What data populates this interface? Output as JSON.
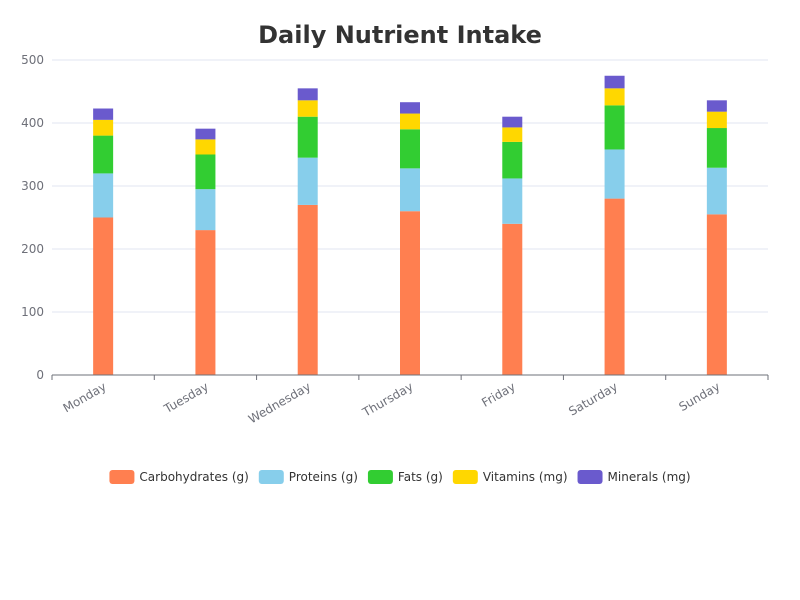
{
  "chart_data": {
    "type": "bar",
    "stacked": true,
    "title": "Daily Nutrient Intake",
    "xlabel": "",
    "ylabel": "",
    "categories": [
      "Monday",
      "Tuesday",
      "Wednesday",
      "Thursday",
      "Friday",
      "Saturday",
      "Sunday"
    ],
    "ylim": [
      0,
      500
    ],
    "yticks": [
      0,
      100,
      200,
      300,
      400,
      500
    ],
    "grid": true,
    "legend_position": "bottom",
    "series": [
      {
        "name": "Carbohydrates (g)",
        "color": "#ff7f50",
        "values": [
          250,
          230,
          270,
          260,
          240,
          280,
          255
        ]
      },
      {
        "name": "Proteins (g)",
        "color": "#87ceeb",
        "values": [
          70,
          65,
          75,
          68,
          72,
          78,
          74
        ]
      },
      {
        "name": "Fats (g)",
        "color": "#32cd32",
        "values": [
          60,
          55,
          65,
          62,
          58,
          70,
          63
        ]
      },
      {
        "name": "Vitamins (mg)",
        "color": "#ffd700",
        "values": [
          25,
          24,
          26,
          25,
          23,
          27,
          26
        ]
      },
      {
        "name": "Minerals (mg)",
        "color": "#6a5acd",
        "values": [
          18,
          17,
          19,
          18,
          17,
          20,
          18
        ]
      }
    ]
  }
}
